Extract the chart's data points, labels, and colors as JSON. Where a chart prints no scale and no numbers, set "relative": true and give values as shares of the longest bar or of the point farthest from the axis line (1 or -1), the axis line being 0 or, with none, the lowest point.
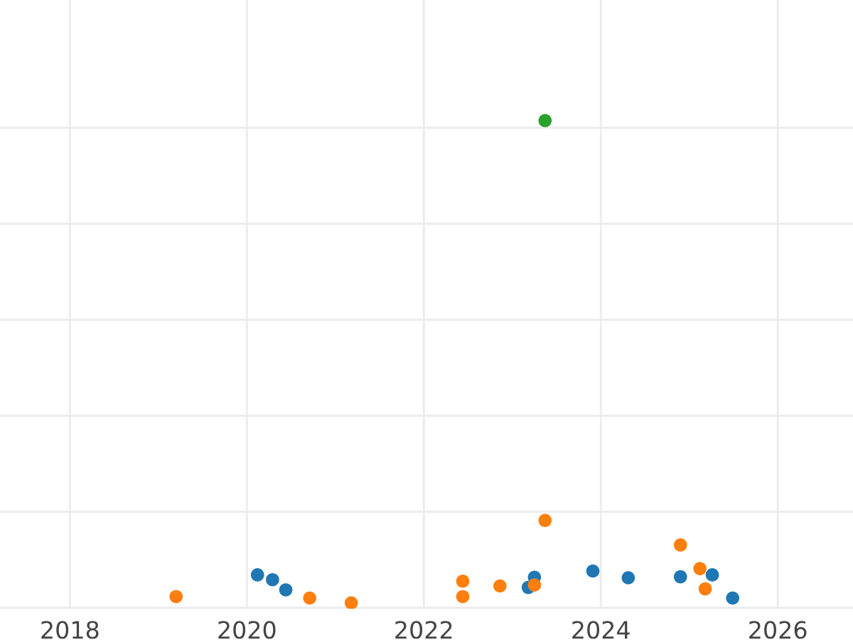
{
  "chart_data": {
    "type": "scatter",
    "relative": true,
    "marker": "circle",
    "grid": true,
    "tick_labels": "x",
    "xlim": [
      2017.21,
      2026.85
    ],
    "xticks": [
      2018,
      2020,
      2022,
      2024,
      2026
    ],
    "series": [
      {
        "color": "#1f77b4",
        "x": [
          2020.12,
          2020.29,
          2020.44,
          2023.18,
          2023.25,
          2023.91,
          2024.31,
          2024.9,
          2025.26,
          2025.49
        ],
        "values": [
          0.058,
          0.048,
          0.027,
          0.032,
          0.053,
          0.066,
          0.052,
          0.054,
          0.058,
          0.01
        ]
      },
      {
        "color": "#ff7f0e",
        "x": [
          2019.2,
          2020.71,
          2021.18,
          2022.44,
          2022.44,
          2022.86,
          2023.25,
          2023.37,
          2024.9,
          2025.12,
          2025.18
        ],
        "values": [
          0.013,
          0.01,
          0,
          0.045,
          0.013,
          0.035,
          0.037,
          0.171,
          0.12,
          0.071,
          0.029
        ]
      },
      {
        "color": "#2ca02c",
        "x": [
          2023.37
        ],
        "values": [
          1
        ]
      }
    ]
  }
}
